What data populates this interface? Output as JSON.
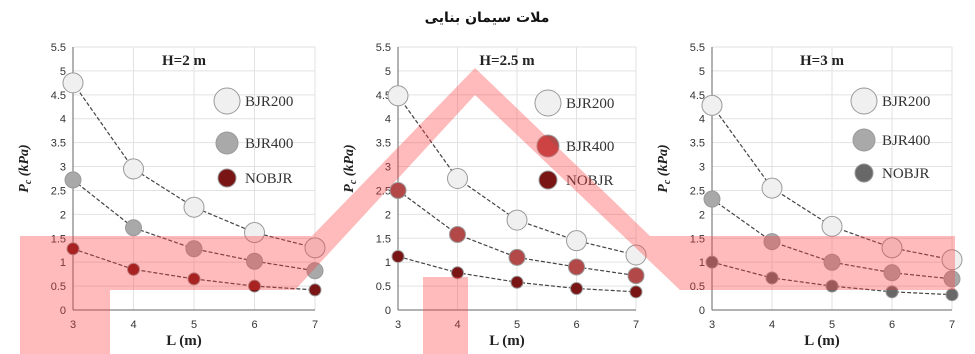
{
  "figure_title": "ملات سیمان بنایی",
  "colors": {
    "BJR200": "#f0f0f0",
    "BJR400": "#a9a9a9",
    "NOBJR": "#686868",
    "panel2_BJR400": "#b24848",
    "panel2_NOBJR": "#7a1515",
    "line": "#444444",
    "overlay": "#ff3b3b",
    "grid": "#e2e2e2"
  },
  "chart_data": [
    {
      "type": "line",
      "title": "H=2 m",
      "xlabel": "L (m)",
      "ylabel": "Pc (kPa)",
      "x": [
        3,
        4,
        5,
        6,
        7
      ],
      "xlim": [
        3,
        7
      ],
      "ylim": [
        0,
        5.5
      ],
      "yticks": [
        0,
        0.5,
        1,
        1.5,
        2,
        2.5,
        3,
        3.5,
        4,
        4.5,
        5,
        5.5
      ],
      "grid": true,
      "legend": "top-right",
      "series": [
        {
          "name": "BJR200",
          "values": [
            4.75,
            2.95,
            2.15,
            1.62,
            1.3
          ]
        },
        {
          "name": "BJR400",
          "values": [
            2.72,
            1.72,
            1.28,
            1.02,
            0.82
          ]
        },
        {
          "name": "NOBJR",
          "values": [
            1.28,
            0.85,
            0.65,
            0.5,
            0.42
          ]
        }
      ]
    },
    {
      "type": "line",
      "title": "H=2.5 m",
      "xlabel": "L (m)",
      "ylabel": "Pc (kPa)",
      "x": [
        3,
        4,
        5,
        6,
        7
      ],
      "xlim": [
        3,
        7
      ],
      "ylim": [
        0,
        5.5
      ],
      "yticks": [
        0,
        0.5,
        1,
        1.5,
        2,
        2.5,
        3,
        3.5,
        4,
        4.5,
        5,
        5.5
      ],
      "grid": true,
      "legend": "top-right",
      "series": [
        {
          "name": "BJR200",
          "values": [
            4.48,
            2.75,
            1.88,
            1.45,
            1.15
          ]
        },
        {
          "name": "BJR400",
          "values": [
            2.5,
            1.58,
            1.1,
            0.9,
            0.72
          ]
        },
        {
          "name": "NOBJR",
          "values": [
            1.12,
            0.78,
            0.58,
            0.45,
            0.38
          ]
        }
      ]
    },
    {
      "type": "line",
      "title": "H=3 m",
      "xlabel": "L (m)",
      "ylabel": "Pc (kPa)",
      "x": [
        3,
        4,
        5,
        6,
        7
      ],
      "xlim": [
        3,
        7
      ],
      "ylim": [
        0,
        5.5
      ],
      "yticks": [
        0,
        0.5,
        1,
        1.5,
        2,
        2.5,
        3,
        3.5,
        4,
        4.5,
        5,
        5.5
      ],
      "grid": true,
      "legend": "top-right",
      "series": [
        {
          "name": "BJR200",
          "values": [
            4.28,
            2.55,
            1.75,
            1.3,
            1.05
          ]
        },
        {
          "name": "BJR400",
          "values": [
            2.32,
            1.43,
            1.0,
            0.78,
            0.65
          ]
        },
        {
          "name": "NOBJR",
          "values": [
            1.0,
            0.67,
            0.5,
            0.38,
            0.32
          ]
        }
      ]
    }
  ]
}
